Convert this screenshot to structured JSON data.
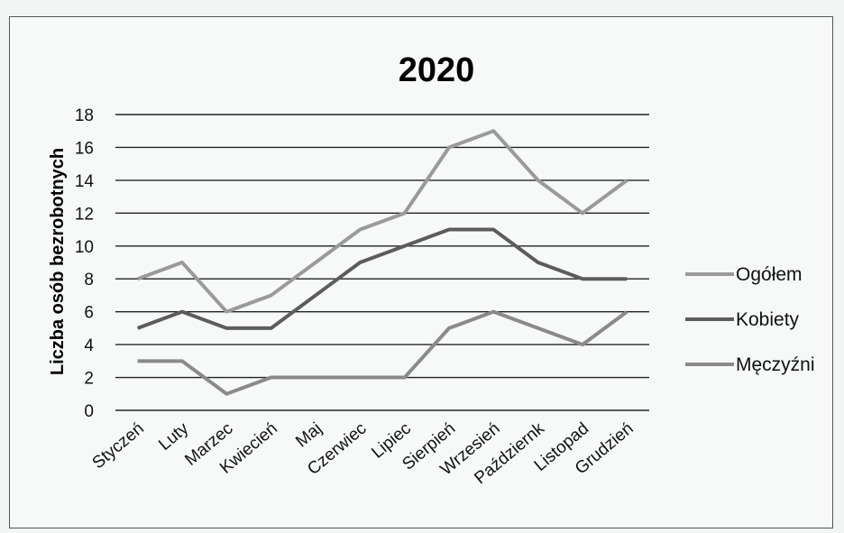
{
  "chart_data": {
    "type": "line",
    "title": "2020",
    "ylabel": "Liczba osób bezrobotnych",
    "xlabel": "",
    "ylim": [
      0,
      18
    ],
    "yticks": [
      0,
      2,
      4,
      6,
      8,
      10,
      12,
      14,
      16,
      18
    ],
    "grid": true,
    "legend": "right",
    "categories": [
      "Styczeń",
      "Luty",
      "Marzec",
      "Kwiecień",
      "Maj",
      "Czerwiec",
      "Lipiec",
      "Sierpień",
      "Wrzesień",
      "Październk",
      "Listopad",
      "Grudzień"
    ],
    "series": [
      {
        "name": "Ogółem",
        "color": "#9a9a9a",
        "values": [
          8,
          9,
          6,
          7,
          9,
          11,
          12,
          16,
          17,
          14,
          12,
          14
        ]
      },
      {
        "name": "Kobiety",
        "color": "#5c5c5c",
        "values": [
          5,
          6,
          5,
          5,
          7,
          9,
          10,
          11,
          11,
          9,
          8,
          8
        ]
      },
      {
        "name": "Męczyźni",
        "color": "#8a8a8a",
        "values": [
          3,
          3,
          1,
          2,
          2,
          2,
          2,
          5,
          6,
          5,
          4,
          6
        ]
      }
    ]
  }
}
